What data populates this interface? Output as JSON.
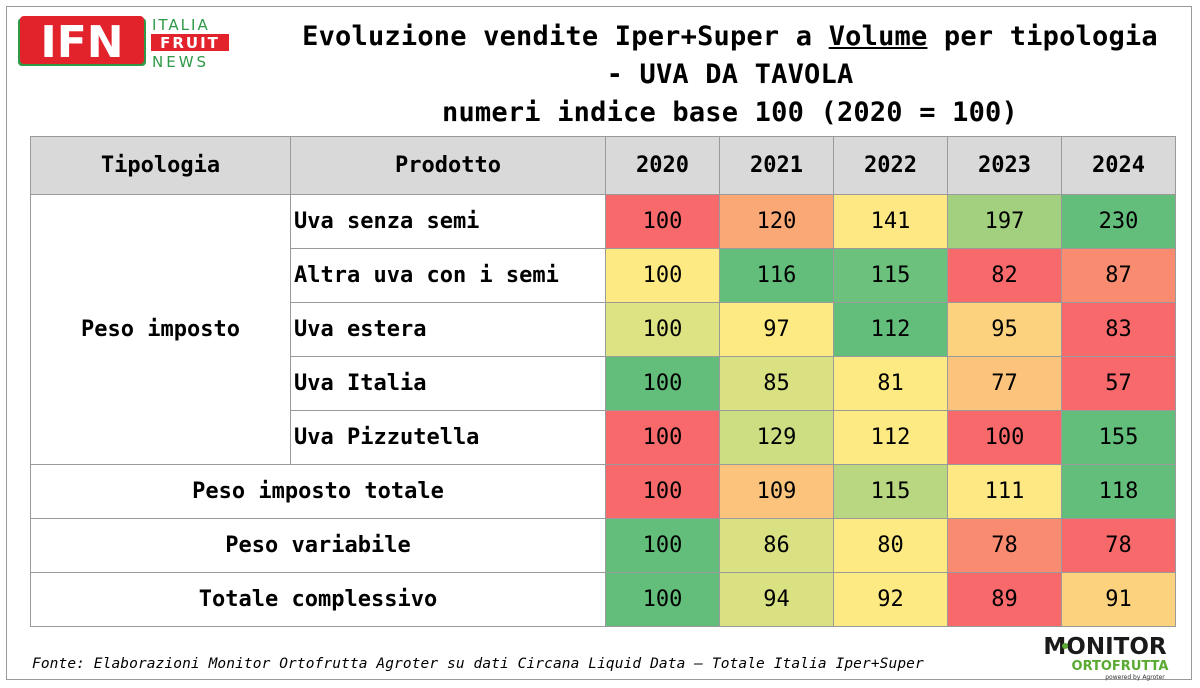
{
  "header": {
    "title_part1": "Evoluzione vendite Iper+Super a ",
    "title_underlined": "Volume",
    "title_part2": " per tipologia",
    "title_line2": "- UVA DA TAVOLA",
    "title_line3": "numeri indice base 100 (2020 = 100)"
  },
  "logos": {
    "ifn_big": "IFN",
    "ifn_line1": "ITALIA",
    "ifn_line2": "FRUIT",
    "ifn_line3": "NEWS",
    "monitor_line1": "MONITOR",
    "monitor_line2": "ORTOFRUTTA",
    "monitor_line3": "powered by Agroter"
  },
  "colors": {
    "red": "#f8696b",
    "orange": "#fbaa77",
    "yellow": "#feea83",
    "green": "#63be7b",
    "header_bg": "#d9d9d9",
    "ifn_red": "#e3232b",
    "ifn_green": "#2e9a47"
  },
  "chart_data": {
    "type": "table",
    "columns": [
      "Tipologia",
      "Prodotto",
      "2020",
      "2021",
      "2022",
      "2023",
      "2024"
    ],
    "groups": [
      {
        "tipologia": "Peso imposto",
        "rows": [
          {
            "prodotto": "Uva senza semi",
            "values": [
              100,
              120,
              141,
              197,
              230
            ],
            "colors": [
              "#f8696b",
              "#fba877",
              "#fde883",
              "#a2d07f",
              "#63be7b"
            ]
          },
          {
            "prodotto": "Altra uva con i semi",
            "values": [
              100,
              116,
              115,
              82,
              87
            ],
            "colors": [
              "#feea83",
              "#63be7b",
              "#6cc17c",
              "#f8696b",
              "#f98b71"
            ]
          },
          {
            "prodotto": "Uva estera",
            "values": [
              100,
              97,
              112,
              95,
              83
            ],
            "colors": [
              "#dde283",
              "#feea83",
              "#63be7b",
              "#fdd27f",
              "#f8696b"
            ]
          },
          {
            "prodotto": "Uva Italia",
            "values": [
              100,
              85,
              81,
              77,
              57
            ],
            "colors": [
              "#63be7b",
              "#d9e182",
              "#feea83",
              "#fcc37c",
              "#f8696b"
            ]
          },
          {
            "prodotto": "Uva Pizzutella",
            "values": [
              100,
              129,
              112,
              100,
              155
            ],
            "colors": [
              "#f8696b",
              "#cddd82",
              "#feea83",
              "#f8696b",
              "#63be7b"
            ]
          }
        ]
      },
      {
        "tipologia": "Peso imposto totale",
        "rows": [
          {
            "prodotto": "",
            "values": [
              100,
              109,
              115,
              111,
              118
            ],
            "colors": [
              "#f8696b",
              "#fcc37c",
              "#b9d780",
              "#fee883",
              "#63be7b"
            ]
          }
        ]
      },
      {
        "tipologia": "Peso variabile",
        "rows": [
          {
            "prodotto": "",
            "values": [
              100,
              86,
              80,
              78,
              78
            ],
            "colors": [
              "#63be7b",
              "#d9e182",
              "#feea83",
              "#f98b71",
              "#f8696b"
            ]
          }
        ]
      },
      {
        "tipologia": "Totale complessivo",
        "rows": [
          {
            "prodotto": "",
            "values": [
              100,
              94,
              92,
              89,
              91
            ],
            "colors": [
              "#63be7b",
              "#d9e182",
              "#feea83",
              "#f8696b",
              "#fdd27f"
            ]
          }
        ]
      }
    ]
  },
  "footer": {
    "source": "Fonte: Elaborazioni Monitor Ortofrutta Agroter su dati Circana Liquid Data – Totale Italia Iper+Super"
  }
}
